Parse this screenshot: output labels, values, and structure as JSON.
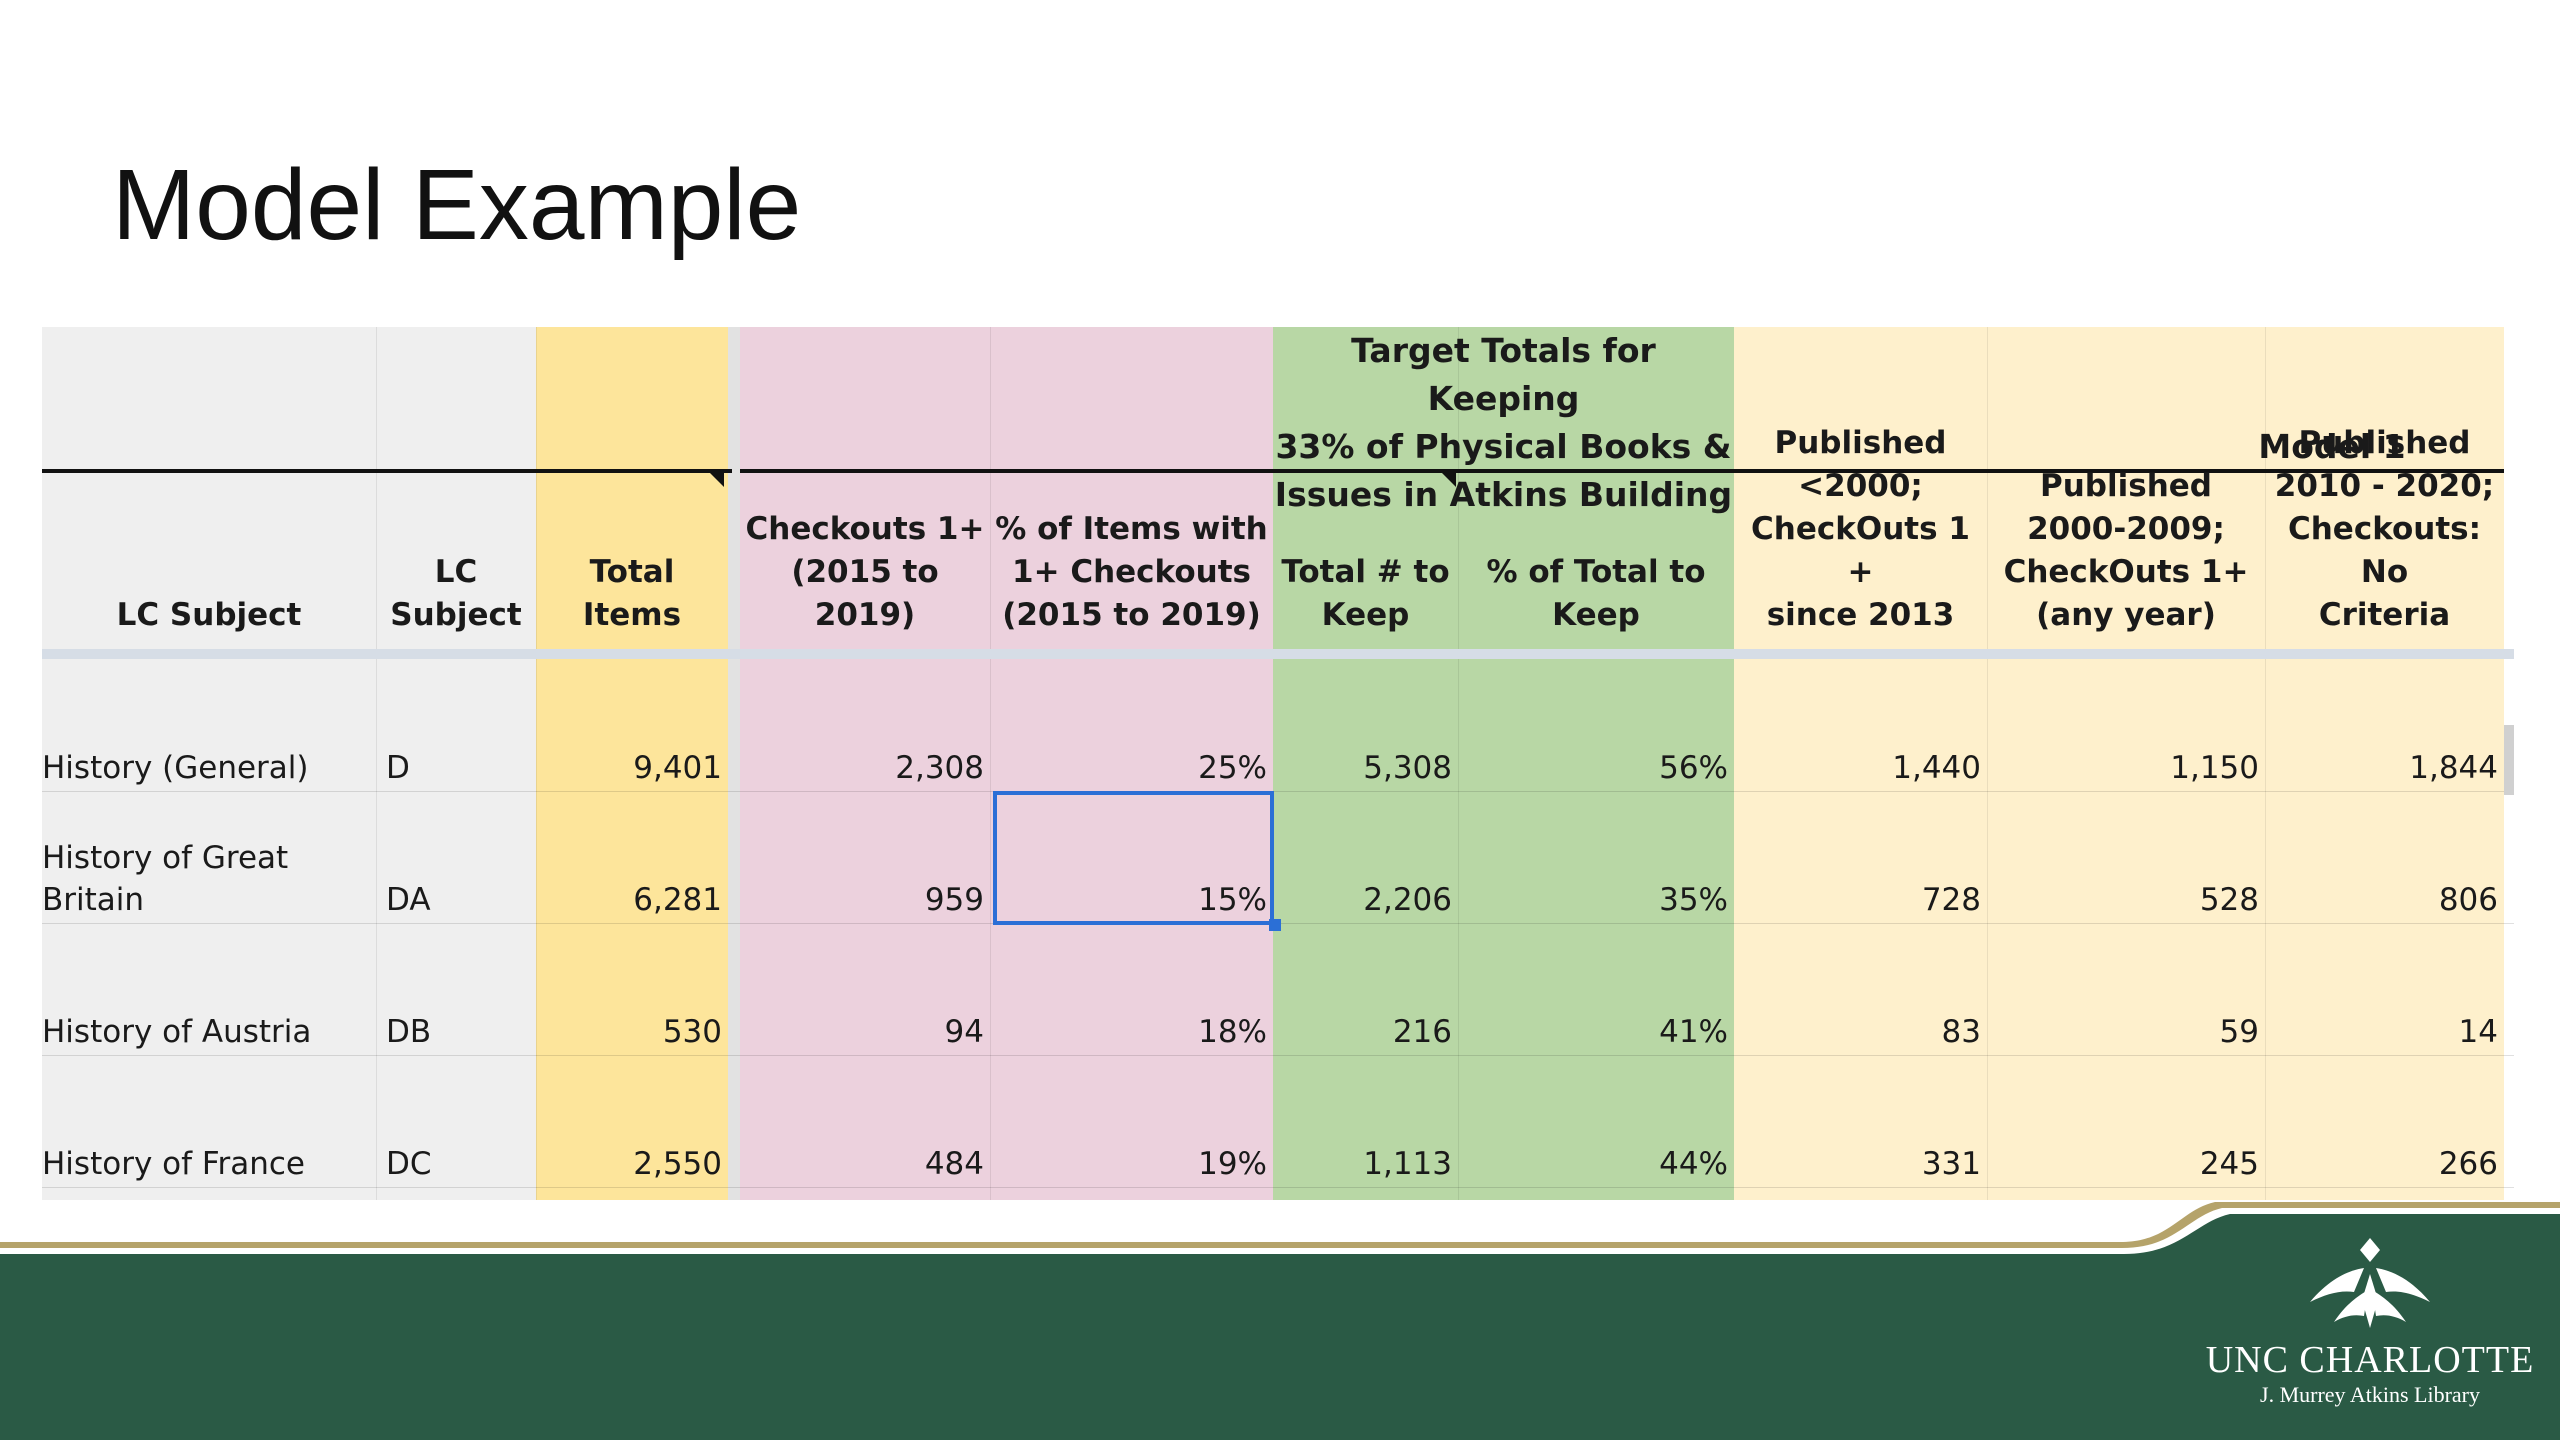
{
  "slide": {
    "title": "Model Example"
  },
  "table": {
    "group_headers": {
      "target": "Target Totals for Keeping 33% of Physical Books & Issues in Atkins Building",
      "target_lines": [
        "Target Totals for Keeping",
        "33% of Physical Books &",
        "Issues in Atkins Building"
      ],
      "model": "Model 1"
    },
    "columns": [
      {
        "label": "LC Subject",
        "lines": [
          "LC Subject"
        ]
      },
      {
        "label": "LC Subject",
        "lines": [
          "LC",
          "Subject"
        ]
      },
      {
        "label": "Total Items",
        "lines": [
          "Total Items"
        ]
      },
      {
        "label": "Checkouts 1+ (2015 to 2019)",
        "lines": [
          "Checkouts 1+",
          "(2015 to 2019)"
        ]
      },
      {
        "label": "% of Items with 1+ Checkouts (2015 to 2019)",
        "lines": [
          "% of Items with",
          "1+ Checkouts",
          "(2015 to 2019)"
        ]
      },
      {
        "label": "Total # to Keep",
        "lines": [
          "Total # to",
          "Keep"
        ]
      },
      {
        "label": "% of Total to Keep",
        "lines": [
          "% of Total to",
          "Keep"
        ]
      },
      {
        "label": "Published <2000; CheckOuts 1 + since 2013",
        "lines": [
          "Published",
          "<2000;",
          "CheckOuts 1 +",
          "since 2013"
        ]
      },
      {
        "label": "Published 2000-2009; CheckOuts 1+ (any year)",
        "lines": [
          "Published",
          "2000-2009;",
          "CheckOuts 1+",
          "(any year)"
        ]
      },
      {
        "label": "Published 2010 - 2020; Checkouts: No Criteria",
        "lines": [
          "Published",
          "2010 - 2020;",
          "Checkouts: No",
          "Criteria"
        ]
      }
    ],
    "rows": [
      {
        "subject_lines": [
          "History (General)"
        ],
        "code": "D",
        "total": "9,401",
        "checkouts": "2,308",
        "pct_checkouts": "25%",
        "keep": "5,308",
        "pct_keep": "56%",
        "pub_pre2000": "1,440",
        "pub_2000_2009": "1,150",
        "pub_2010_2020": "1,844"
      },
      {
        "subject_lines": [
          "History of Great",
          "Britain"
        ],
        "code": "DA",
        "total": "6,281",
        "checkouts": "959",
        "pct_checkouts": "15%",
        "keep": "2,206",
        "pct_keep": "35%",
        "pub_pre2000": "728",
        "pub_2000_2009": "528",
        "pub_2010_2020": "806"
      },
      {
        "subject_lines": [
          "History of Austria"
        ],
        "code": "DB",
        "total": "530",
        "checkouts": "94",
        "pct_checkouts": "18%",
        "keep": "216",
        "pct_keep": "41%",
        "pub_pre2000": "83",
        "pub_2000_2009": "59",
        "pub_2010_2020": "14"
      },
      {
        "subject_lines": [
          "History of France"
        ],
        "code": "DC",
        "total": "2,550",
        "checkouts": "484",
        "pct_checkouts": "19%",
        "keep": "1,113",
        "pct_keep": "44%",
        "pub_pre2000": "331",
        "pub_2000_2009": "245",
        "pub_2010_2020": "266"
      }
    ],
    "selected_cell": {
      "row": 1,
      "column": 4
    }
  },
  "footer": {
    "logo_name": "UNC CHARLOTTE",
    "logo_sub": "J. Murrey Atkins Library",
    "colors": {
      "green": "#2a5a45",
      "gold": "#b5a36a"
    }
  }
}
